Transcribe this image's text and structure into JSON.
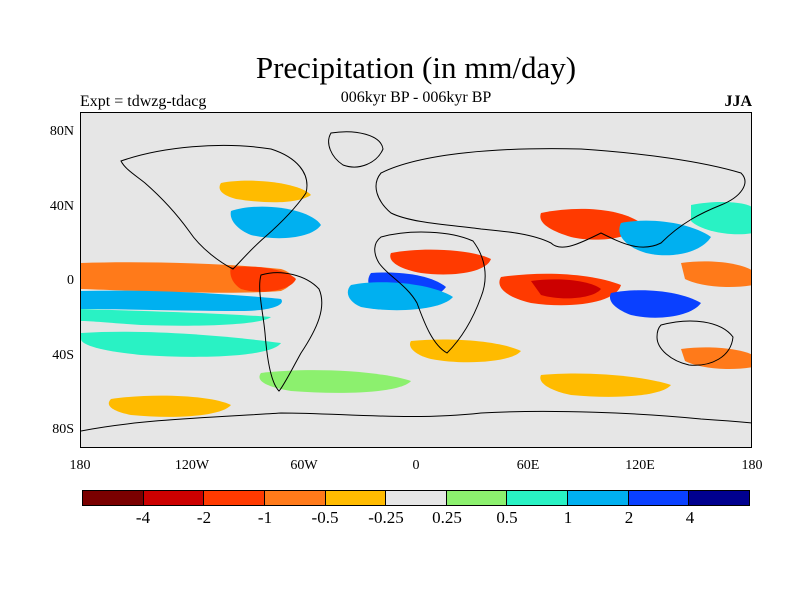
{
  "title": "Precipitation (in mm/day)",
  "subtitle": "006kyr BP - 006kyr BP",
  "left_label": "Expt = tdwzg-tdacg",
  "right_label": "JJA",
  "lat_labels": [
    "80N",
    "40N",
    "0",
    "40S",
    "80S"
  ],
  "lon_labels": [
    "180",
    "120W",
    "60W",
    "0",
    "60E",
    "120E",
    "180"
  ],
  "colorbar": {
    "colors": [
      "#7a0000",
      "#cc0000",
      "#ff3a00",
      "#ff7a1a",
      "#ffbb00",
      "#e6e6e6",
      "#8cf06e",
      "#29f2c4",
      "#00b0f0",
      "#0a40ff",
      "#00008f"
    ],
    "labels": [
      "-4",
      "-2",
      "-1",
      "-0.5",
      "-0.25",
      "0.25",
      "0.5",
      "1",
      "2",
      "4"
    ]
  }
}
